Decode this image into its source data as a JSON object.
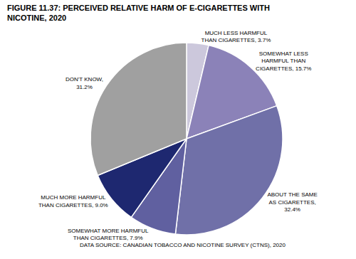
{
  "chart_data": {
    "type": "pie",
    "title": "FIGURE 11.37: PERCEIVED RELATIVE HARM OF E-CIGARETTES WITH\nNICOTINE, 2020",
    "categories": [
      "MUCH LESS HARMFUL\nTHAN CIGARETTES, 3.7%",
      "SOMEWHAT LESS\nHARMFUL THAN\nCIGARETTES, 15.7%",
      "ABOUT THE SAME\nAS CIGARETTES,\n32.4%",
      "SOMEWHAT MORE HARMFUL\nTHAN CIGARETTES, 7.9%",
      "MUCH MORE HARMFUL\nTHAN CIGARETTES, 9.0%",
      "DON'T KNOW,\n31.2%"
    ],
    "values": [
      3.7,
      15.7,
      32.4,
      7.9,
      9.0,
      31.2
    ],
    "colors": [
      "#ccc8dc",
      "#8b82b8",
      "#7070a8",
      "#6060a0",
      "#1e2870",
      "#a0a0a0"
    ],
    "annotations": [
      "DATA SOURCE: CANADIAN TOBACCO AND NICOTINE SURVEY (CTNS), 2020"
    ]
  }
}
